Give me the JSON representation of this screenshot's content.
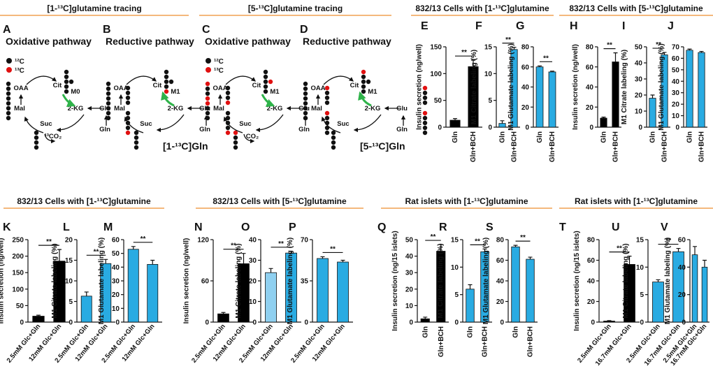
{
  "section_headers": [
    "[1-¹³C]glutamine tracing",
    "[5-¹³C]glutamine tracing",
    "832/13 Cells with [1-¹³C]glutamine",
    "832/13 Cells with [5-¹³C]glutamine",
    "832/13 Cells with [1-¹³C]glutamine",
    "832/13 Cells with [5-¹³C]glutamine",
    "Rat islets with [1-¹³C]glutamine",
    "Rat islets with [1-¹³C]glutamine"
  ],
  "diagrams": [
    {
      "letter": "A",
      "title": "Oxidative pathway",
      "legend": [
        "¹²C",
        "¹³C"
      ],
      "labels": {
        "oaa": "OAA",
        "cit": "Cit",
        "isotopologue": "M0",
        "mal": "Mal",
        "akg": "2-KG",
        "glu": "Glu",
        "gln": "Gln",
        "suc": "Suc",
        "co2": "¹³CO₂"
      }
    },
    {
      "letter": "B",
      "title": "Reductive pathway",
      "labels": {
        "oaa": "OAA",
        "cit": "Cit",
        "isotopologue": "M1",
        "mal": "Mal",
        "akg": "2-KG",
        "glu": "Glu",
        "gln": "Gln",
        "suc": "Suc",
        "tracer": "[1-¹³C]Gln"
      }
    },
    {
      "letter": "C",
      "title": "Oxidative pathway",
      "legend": [
        "¹²C",
        "¹³C"
      ],
      "labels": {
        "oaa": "OAA",
        "cit": "Cit",
        "isotopologue": "M1",
        "mal": "Mal",
        "akg": "2-KG",
        "glu": "Glu",
        "gln": "Gln",
        "suc": "Suc",
        "co2": "CO₂"
      }
    },
    {
      "letter": "D",
      "title": "Reductive pathway",
      "labels": {
        "oaa": "OAA",
        "cit": "Cit",
        "isotopologue": "M1",
        "mal": "Mal",
        "akg": "2-KG",
        "glu": "Glu",
        "gln": "Gln",
        "suc": "Suc",
        "tracer": "[5-¹³C]Gln"
      }
    }
  ],
  "chart_data": [
    {
      "type": "bar",
      "letter": "E",
      "ylabel": "Insulin secretion (ng/well)",
      "categories": [
        "Gln",
        "Gln+BCH"
      ],
      "values": [
        13,
        113
      ],
      "errors": [
        3,
        12
      ],
      "colors": [
        "#000000",
        "#000000"
      ],
      "ylim": [
        0,
        150
      ],
      "yticks": [
        0,
        50,
        100,
        150
      ],
      "significance": "**"
    },
    {
      "type": "bar",
      "letter": "F",
      "ylabel": "M1 Citrate labeling (%)",
      "categories": [
        "Gln",
        "Gln+BCH"
      ],
      "values": [
        0.7,
        14.5
      ],
      "errors": [
        0.5,
        0.4
      ],
      "colors": [
        "#29abe2",
        "#29abe2"
      ],
      "ylim": [
        0,
        15
      ],
      "yticks": [
        0,
        5,
        10,
        15
      ],
      "significance": "**"
    },
    {
      "type": "bar",
      "letter": "G",
      "ylabel": "M1 Glutamate labeling (%)",
      "categories": [
        "Gln",
        "Gln+BCH"
      ],
      "values": [
        60,
        55
      ],
      "errors": [
        1,
        0.8
      ],
      "colors": [
        "#29abe2",
        "#29abe2"
      ],
      "ylim": [
        0,
        80
      ],
      "yticks": [
        0,
        20,
        40,
        60,
        80
      ],
      "significance": "**"
    },
    {
      "type": "bar",
      "letter": "H",
      "ylabel": "Insulin secretion (ng/well)",
      "categories": [
        "Gln",
        "Gln+BCH"
      ],
      "values": [
        9,
        65
      ],
      "errors": [
        1,
        9
      ],
      "colors": [
        "#000000",
        "#000000"
      ],
      "ylim": [
        0,
        80
      ],
      "yticks": [
        0,
        20,
        40,
        60,
        80
      ],
      "significance": "**"
    },
    {
      "type": "bar",
      "letter": "I",
      "ylabel": "M1 Citrate labeling (%)",
      "categories": [
        "Gln",
        "Gln+BCH"
      ],
      "values": [
        18,
        45
      ],
      "errors": [
        2,
        1.5
      ],
      "colors": [
        "#29abe2",
        "#29abe2"
      ],
      "ylim": [
        0,
        50
      ],
      "yticks": [
        0,
        10,
        20,
        30,
        40,
        50
      ],
      "significance": "**"
    },
    {
      "type": "bar",
      "letter": "J",
      "ylabel": "M1 Glutamate labeling (%)",
      "categories": [
        "Gln",
        "Gln+BCH"
      ],
      "values": [
        67,
        65
      ],
      "errors": [
        1,
        1
      ],
      "colors": [
        "#29abe2",
        "#29abe2"
      ],
      "ylim": [
        0,
        70
      ],
      "yticks": [
        0,
        10,
        20,
        30,
        40,
        50,
        60,
        70
      ]
    },
    {
      "type": "bar",
      "letter": "K",
      "ylabel": "Insulin secretion (ng/well)",
      "categories": [
        "2.5mM Glc+Gln",
        "12mM Glc+Gln"
      ],
      "values": [
        18,
        185
      ],
      "errors": [
        3,
        35
      ],
      "colors": [
        "#000000",
        "#000000"
      ],
      "ylim": [
        0,
        250
      ],
      "yticks": [
        0,
        50,
        100,
        150,
        200,
        250
      ],
      "significance": "**"
    },
    {
      "type": "bar",
      "letter": "L",
      "ylabel": "M1 Citrate labeling (%)",
      "categories": [
        "2.5mM Glc+Gln",
        "12mM Glc+Gln"
      ],
      "values": [
        6.3,
        14.2
      ],
      "errors": [
        1,
        1
      ],
      "colors": [
        "#29abe2",
        "#29abe2"
      ],
      "ylim": [
        0,
        20
      ],
      "yticks": [
        0,
        5,
        10,
        15,
        20
      ],
      "significance": "**"
    },
    {
      "type": "bar",
      "letter": "M",
      "ylabel": "M1 Glutamate labeling (%)",
      "categories": [
        "2.5mM Glc+Gln",
        "12mM Glc+Gln"
      ],
      "values": [
        53,
        42
      ],
      "errors": [
        2,
        3
      ],
      "colors": [
        "#29abe2",
        "#29abe2"
      ],
      "ylim": [
        0,
        60
      ],
      "yticks": [
        0,
        10,
        20,
        30,
        40,
        50,
        60
      ],
      "significance": "**"
    },
    {
      "type": "bar",
      "letter": "N",
      "ylabel": "Insulin secretion (ng/well)",
      "categories": [
        "2.5mM Glc+Gln",
        "12mM Glc+Gln"
      ],
      "values": [
        12,
        85
      ],
      "errors": [
        2,
        15
      ],
      "colors": [
        "#000000",
        "#000000"
      ],
      "ylim": [
        0,
        120
      ],
      "yticks": [
        0,
        60,
        120
      ],
      "significance": "**"
    },
    {
      "type": "bar",
      "letter": "O",
      "ylabel": "M1 Citrate labeling (%)",
      "categories": [
        "2.5mM Glc+Gln",
        "12mM Glc+Gln"
      ],
      "values": [
        24,
        33.5
      ],
      "errors": [
        2,
        0.8
      ],
      "colors": [
        "#8fd0f0",
        "#29abe2"
      ],
      "ylim": [
        0,
        40
      ],
      "yticks": [
        0,
        10,
        20,
        30,
        40
      ],
      "significance": "**"
    },
    {
      "type": "bar",
      "letter": "P",
      "ylabel": "M1 Glutamate labeling (%)",
      "categories": [
        "2.5mM Glc+Gln",
        "12mM Glc+Gln"
      ],
      "values": [
        54,
        51
      ],
      "errors": [
        1.5,
        1.5
      ],
      "colors": [
        "#29abe2",
        "#29abe2"
      ],
      "ylim": [
        0,
        70
      ],
      "yticks": [
        0,
        35,
        70
      ],
      "significance": "**"
    },
    {
      "type": "bar",
      "letter": "Q",
      "ylabel": "Insulin secretion (ng/15 islets)",
      "categories": [
        "Gln",
        "Gln+BCH"
      ],
      "values": [
        2,
        43
      ],
      "errors": [
        1,
        4
      ],
      "colors": [
        "#000000",
        "#000000"
      ],
      "ylim": [
        0,
        50
      ],
      "yticks": [
        0,
        10,
        20,
        30,
        40,
        50
      ],
      "significance": "**"
    },
    {
      "type": "bar",
      "letter": "R",
      "ylabel": "M1 Citrate labeling (%)",
      "categories": [
        "Gln",
        "Gln+BCH"
      ],
      "values": [
        6,
        12.8
      ],
      "errors": [
        0.8,
        0.5
      ],
      "colors": [
        "#29abe2",
        "#29abe2"
      ],
      "ylim": [
        0,
        15
      ],
      "yticks": [
        0,
        5,
        10,
        15
      ],
      "significance": "**"
    },
    {
      "type": "bar",
      "letter": "S",
      "ylabel": "M1 Glutamate labeling (%)",
      "categories": [
        "Gln",
        "Gln+BCH"
      ],
      "values": [
        73,
        61
      ],
      "errors": [
        1.5,
        2
      ],
      "colors": [
        "#29abe2",
        "#29abe2"
      ],
      "ylim": [
        0,
        80
      ],
      "yticks": [
        0,
        20,
        40,
        60,
        80
      ],
      "significance": "**"
    },
    {
      "type": "bar",
      "letter": "T",
      "ylabel": "Insulin secretion (ng/15 islets)",
      "categories": [
        "2.5mM Glc+Gln",
        "16.7mM Glc+Gln"
      ],
      "values": [
        1,
        56
      ],
      "errors": [
        0.5,
        8
      ],
      "colors": [
        "#000000",
        "#000000"
      ],
      "ylim": [
        0,
        80
      ],
      "yticks": [
        0,
        20,
        40,
        60,
        80
      ],
      "significance": "**"
    },
    {
      "type": "bar",
      "letter": "U",
      "ylabel": "M1 Citrate labeling (%)",
      "categories": [
        "2.5mM Glc+Gln",
        "16.7mM Glc+Gln"
      ],
      "values": [
        7.3,
        12.8
      ],
      "errors": [
        0.4,
        0.6
      ],
      "colors": [
        "#29abe2",
        "#29abe2"
      ],
      "ylim": [
        0,
        15
      ],
      "yticks": [
        0,
        5,
        10,
        15
      ],
      "significance": "**"
    },
    {
      "type": "bar",
      "letter": "V",
      "ylabel": "M1 Glutamate labeling (%)",
      "categories": [
        "2.5mM Glc+Gln",
        "16.7mM Glc+Gln"
      ],
      "values": [
        49,
        40
      ],
      "errors": [
        6,
        5
      ],
      "colors": [
        "#29abe2",
        "#29abe2"
      ],
      "ylim": [
        0,
        60
      ],
      "yticks": [
        0,
        20,
        40,
        60
      ]
    }
  ]
}
